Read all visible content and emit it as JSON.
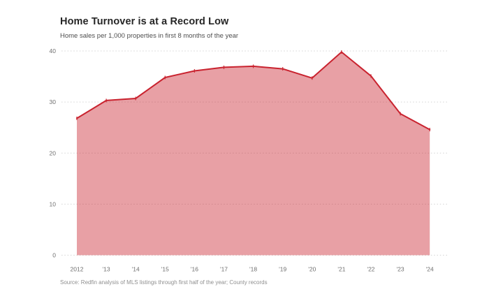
{
  "header": {
    "title": "Home Turnover is at a Record Low",
    "subtitle": "Home sales per 1,000 properties in first 8 months of the year"
  },
  "source": "Source: Redfin analysis of MLS listings through first half of the year; County records",
  "colors": {
    "line": "#c9232f",
    "area_fill": "rgba(201,35,47,0.43)",
    "grid": "#d4d4d4",
    "axis_text": "#6e6e6e",
    "title_text": "#262626",
    "subtitle_text": "#4d4d4d",
    "source_text": "#8f8f8f",
    "background": "#ffffff"
  },
  "chart_data": {
    "type": "area",
    "title": "Home Turnover is at a Record Low",
    "subtitle": "Home sales per 1,000 properties in first 8 months of the year",
    "categories": [
      "2012",
      "'13",
      "'14",
      "'15",
      "'16",
      "'17",
      "'18",
      "'19",
      "'20",
      "'21",
      "'22",
      "'23",
      "'24"
    ],
    "values": [
      26.8,
      30.3,
      30.7,
      34.8,
      36.1,
      36.8,
      37.0,
      36.5,
      34.7,
      39.8,
      35.1,
      27.7,
      24.6
    ],
    "xlabel": "",
    "ylabel": "",
    "ylim": [
      0,
      40
    ],
    "yticks": [
      0,
      10,
      20,
      30,
      40
    ],
    "grid": true,
    "grid_style": "dotted",
    "legend": false,
    "marker": "tick"
  }
}
